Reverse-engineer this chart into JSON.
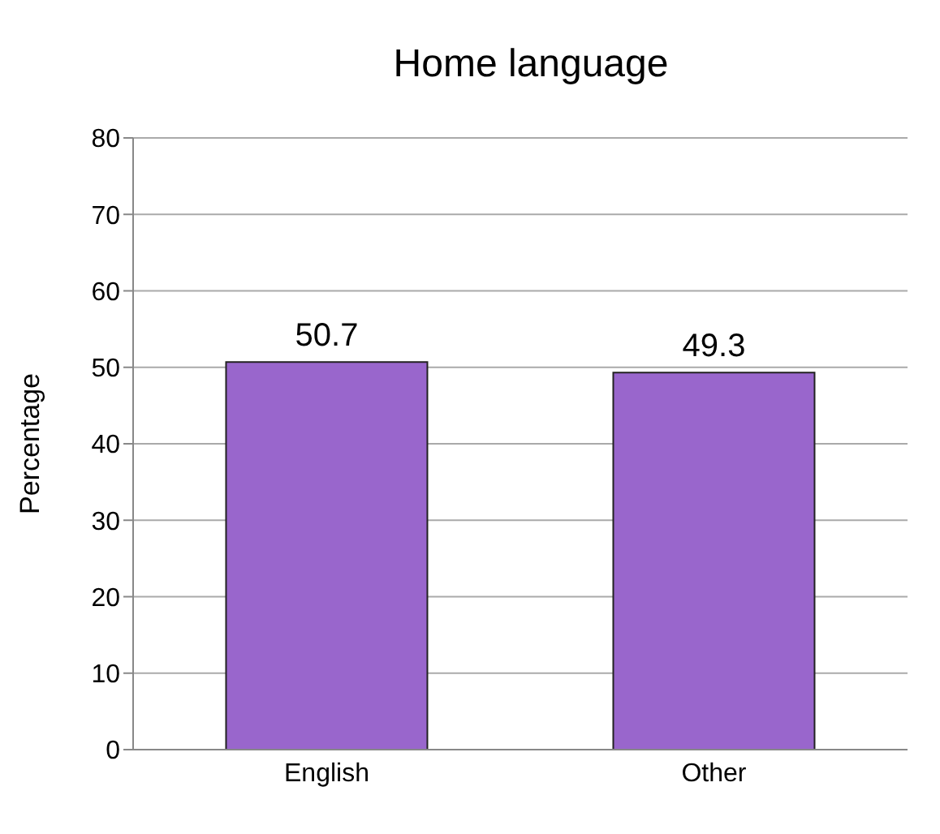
{
  "chart_data": {
    "type": "bar",
    "title": "Home language",
    "ylabel": "Percentage",
    "categories": [
      "English",
      "Other"
    ],
    "values": [
      50.7,
      49.3
    ],
    "color": "#9966cc",
    "ylim": [
      0,
      80
    ],
    "yticks": [
      0,
      10,
      20,
      30,
      40,
      50,
      60,
      70,
      80
    ],
    "grid": "y",
    "data_labels": true
  }
}
